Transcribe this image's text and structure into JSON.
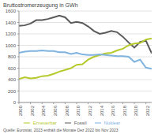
{
  "chart_data": {
    "type": "line",
    "title": "Bruttostromerzeugung in GWh",
    "subtitle": "Quelle: Eurostat, 2023 enthält die Monate Dez 2022 bis Nov 2023",
    "x": [
      2000,
      2001,
      2002,
      2003,
      2004,
      2005,
      2006,
      2007,
      2008,
      2009,
      2010,
      2011,
      2012,
      2013,
      2014,
      2015,
      2016,
      2017,
      2018,
      2019,
      2020,
      2021,
      2022,
      2023
    ],
    "series": [
      {
        "name": "Fossil",
        "color": "#5a5a5a",
        "values": [
          1340,
          1350,
          1380,
          1440,
          1440,
          1460,
          1490,
          1520,
          1490,
          1390,
          1410,
          1390,
          1330,
          1250,
          1200,
          1220,
          1250,
          1230,
          1150,
          1050,
          960,
          1060,
          1080,
          860
        ]
      },
      {
        "name": "Erneuerbar",
        "color": "#b5c92a",
        "values": [
          410,
          440,
          420,
          430,
          460,
          470,
          500,
          540,
          570,
          600,
          660,
          670,
          750,
          800,
          830,
          860,
          870,
          910,
          940,
          1000,
          1030,
          1040,
          1100,
          1120
        ]
      },
      {
        "name": "Nuklear",
        "color": "#7fb3e0",
        "values": [
          870,
          890,
          900,
          900,
          910,
          900,
          900,
          880,
          880,
          850,
          870,
          840,
          830,
          830,
          840,
          830,
          820,
          810,
          810,
          800,
          710,
          750,
          610,
          590
        ]
      }
    ],
    "xlim": [
      2000,
      2023
    ],
    "xticks": [
      2000,
      2002,
      2004,
      2006,
      2008,
      2010,
      2012,
      2014,
      2016,
      2018,
      2020,
      2022
    ],
    "ylim": [
      0,
      1600
    ],
    "yticks": [
      0,
      200,
      400,
      600,
      800,
      1000,
      1200,
      1400,
      1600
    ],
    "grid": true,
    "legend": "bottom"
  }
}
